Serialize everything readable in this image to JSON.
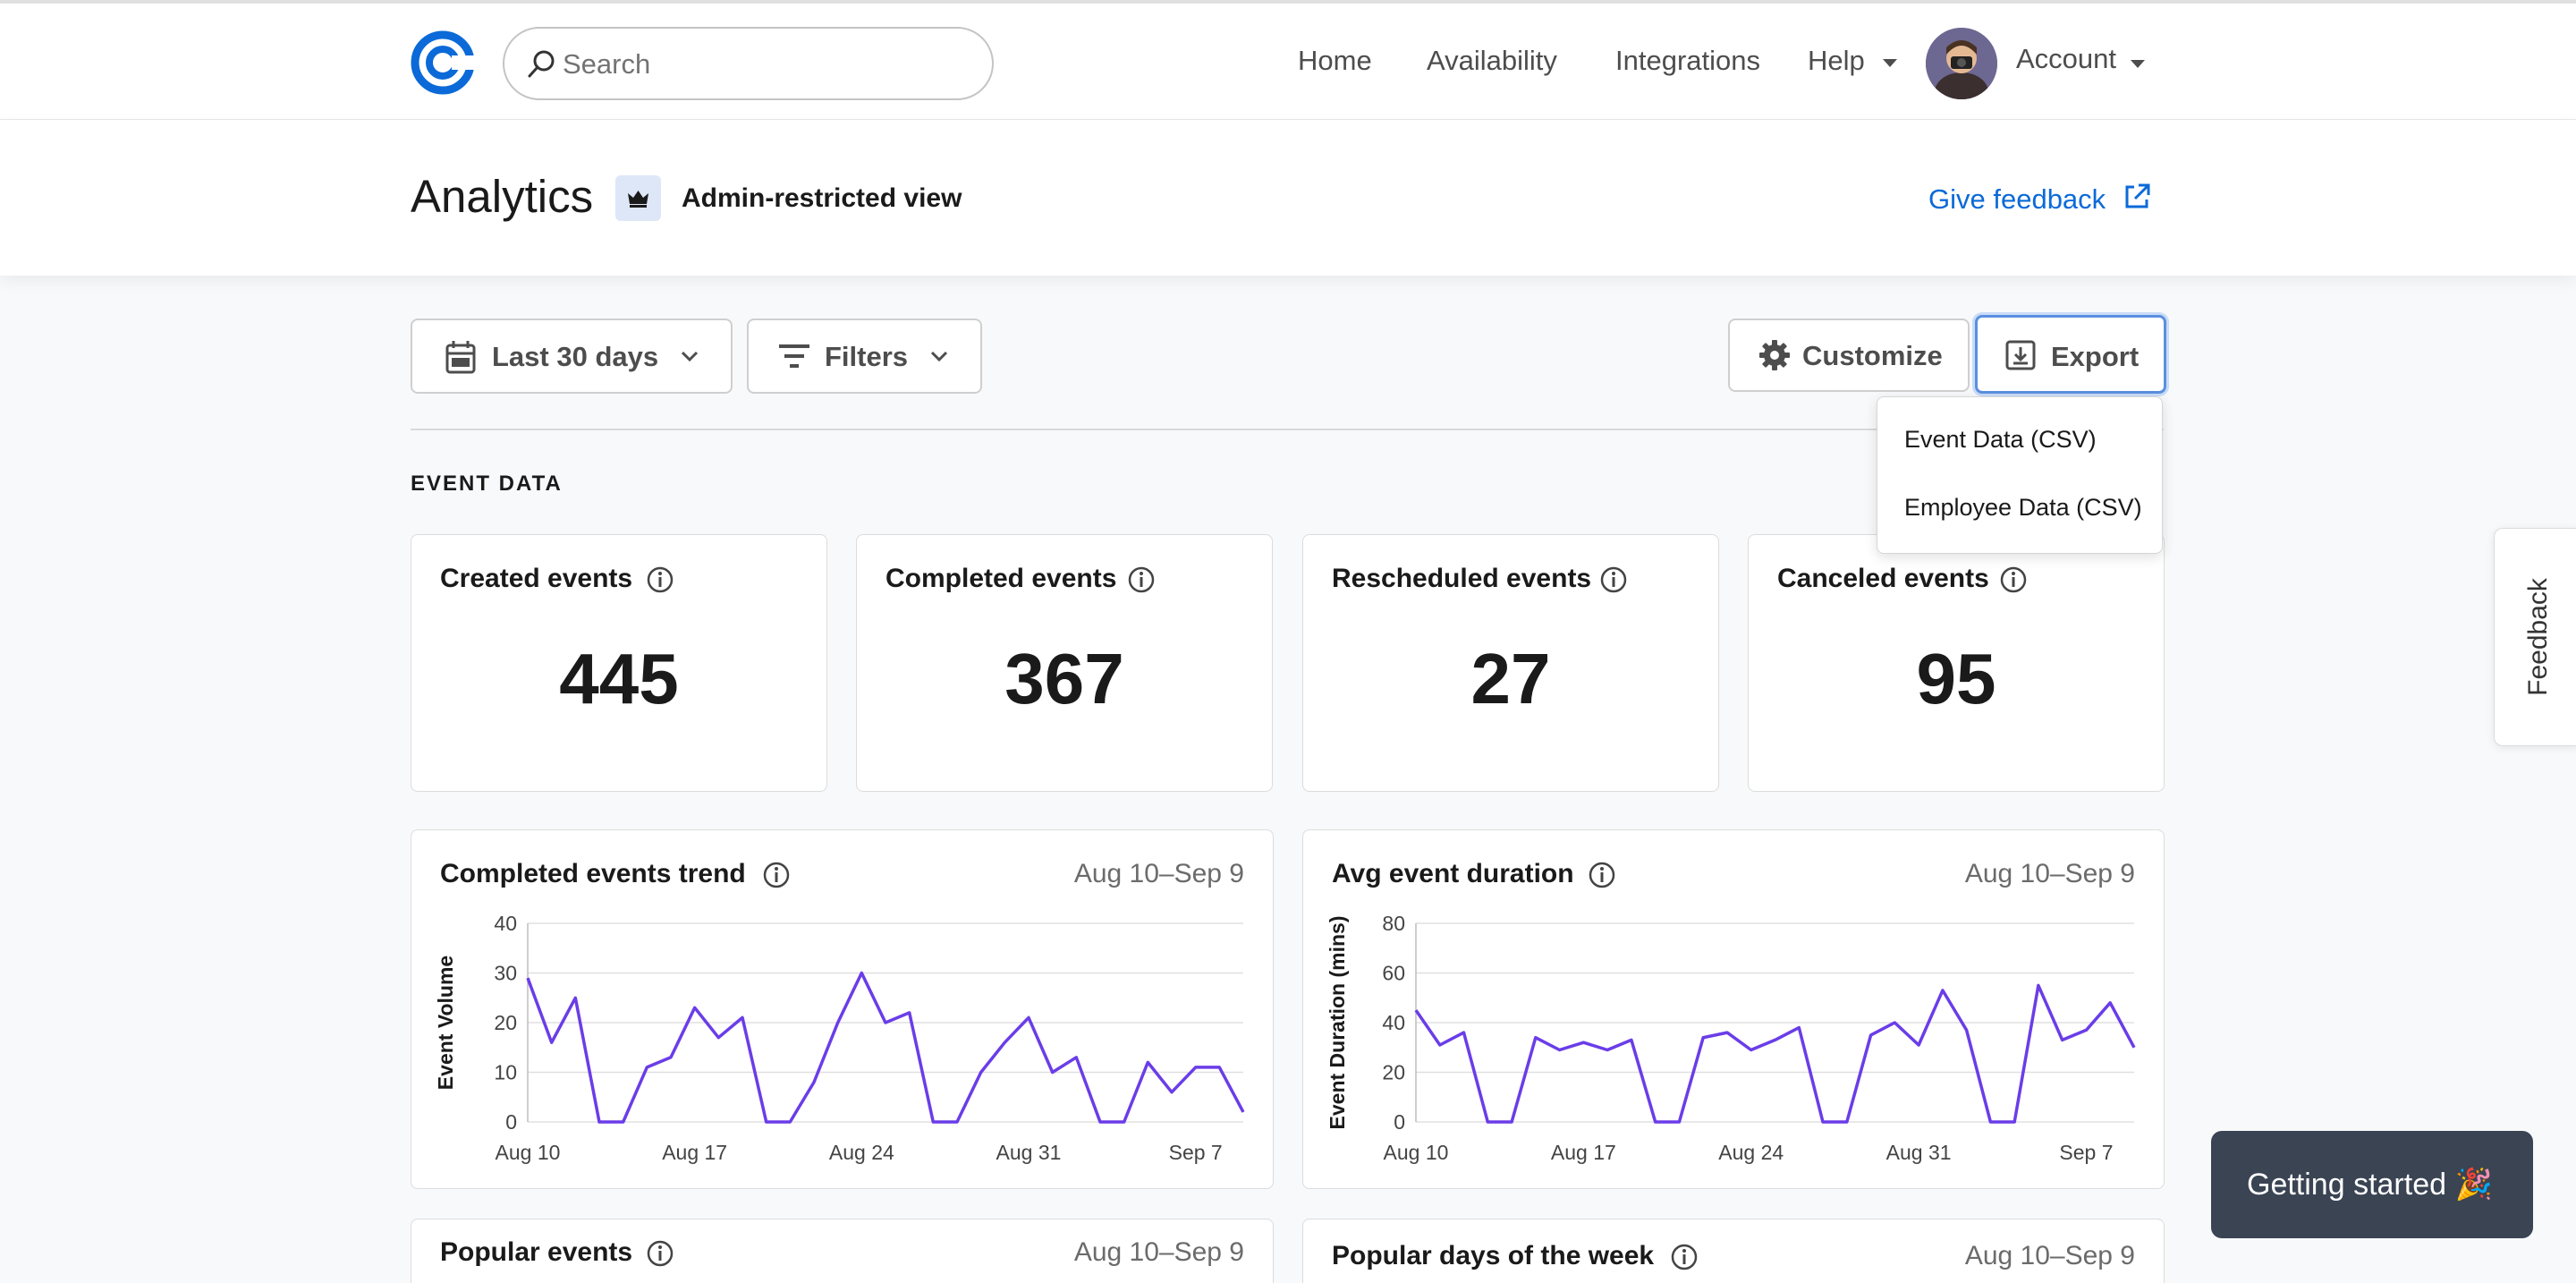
{
  "nav": {
    "search_placeholder": "Search",
    "links": [
      "Home",
      "Availability",
      "Integrations",
      "Help",
      "Account"
    ]
  },
  "header": {
    "title": "Analytics",
    "admin_label": "Admin-restricted view",
    "feedback_link": "Give feedback"
  },
  "toolbar": {
    "date_range": "Last 30 days",
    "filters": "Filters",
    "customize": "Customize",
    "export": "Export"
  },
  "export_menu": [
    "Event Data (CSV)",
    "Employee Data (CSV)"
  ],
  "section": {
    "title": "EVENT DATA"
  },
  "stats": [
    {
      "label": "Created events",
      "value": "445"
    },
    {
      "label": "Completed events",
      "value": "367"
    },
    {
      "label": "Rescheduled events",
      "value": "27"
    },
    {
      "label": "Canceled events",
      "value": "95"
    }
  ],
  "charts_meta": {
    "trend_title": "Completed events trend",
    "duration_title": "Avg event duration",
    "popular_events_title": "Popular events",
    "popular_days_title": "Popular days of the week",
    "range": "Aug 10–Sep 9"
  },
  "feedback_tab": "Feedback",
  "getting_started": "Getting started 🎉",
  "colors": {
    "accent": "#0b6ad8",
    "line": "#6a3de8"
  },
  "chart_data": [
    {
      "type": "line",
      "title": "Completed events trend",
      "ylabel": "Event Volume",
      "xlabel": "",
      "ylim": [
        0,
        40
      ],
      "yticks": [
        0,
        10,
        20,
        30,
        40
      ],
      "xtick_labels": [
        "Aug 10",
        "Aug 17",
        "Aug 24",
        "Aug 31",
        "Sep 7"
      ],
      "x": [
        "Aug 10",
        "Aug 11",
        "Aug 12",
        "Aug 13",
        "Aug 14",
        "Aug 15",
        "Aug 16",
        "Aug 17",
        "Aug 18",
        "Aug 19",
        "Aug 20",
        "Aug 21",
        "Aug 22",
        "Aug 23",
        "Aug 24",
        "Aug 25",
        "Aug 26",
        "Aug 27",
        "Aug 28",
        "Aug 29",
        "Aug 30",
        "Aug 31",
        "Sep 1",
        "Sep 2",
        "Sep 3",
        "Sep 4",
        "Sep 5",
        "Sep 6",
        "Sep 7",
        "Sep 8",
        "Sep 9"
      ],
      "values": [
        29,
        16,
        25,
        0,
        0,
        11,
        13,
        23,
        17,
        21,
        0,
        0,
        8,
        20,
        30,
        20,
        22,
        0,
        0,
        10,
        16,
        21,
        10,
        13,
        0,
        0,
        12,
        6,
        11,
        11,
        2
      ]
    },
    {
      "type": "line",
      "title": "Avg event duration",
      "ylabel": "Event Duration (mins)",
      "xlabel": "",
      "ylim": [
        0,
        80
      ],
      "yticks": [
        0,
        20,
        40,
        60,
        80
      ],
      "xtick_labels": [
        "Aug 10",
        "Aug 17",
        "Aug 24",
        "Aug 31",
        "Sep 7"
      ],
      "x": [
        "Aug 10",
        "Aug 11",
        "Aug 12",
        "Aug 13",
        "Aug 14",
        "Aug 15",
        "Aug 16",
        "Aug 17",
        "Aug 18",
        "Aug 19",
        "Aug 20",
        "Aug 21",
        "Aug 22",
        "Aug 23",
        "Aug 24",
        "Aug 25",
        "Aug 26",
        "Aug 27",
        "Aug 28",
        "Aug 29",
        "Aug 30",
        "Aug 31",
        "Sep 1",
        "Sep 2",
        "Sep 3",
        "Sep 4",
        "Sep 5",
        "Sep 6",
        "Sep 7",
        "Sep 8",
        "Sep 9"
      ],
      "values": [
        45,
        31,
        36,
        0,
        0,
        34,
        29,
        32,
        29,
        33,
        0,
        0,
        34,
        36,
        29,
        33,
        38,
        0,
        0,
        35,
        40,
        31,
        53,
        37,
        0,
        0,
        55,
        33,
        37,
        48,
        30
      ]
    }
  ]
}
